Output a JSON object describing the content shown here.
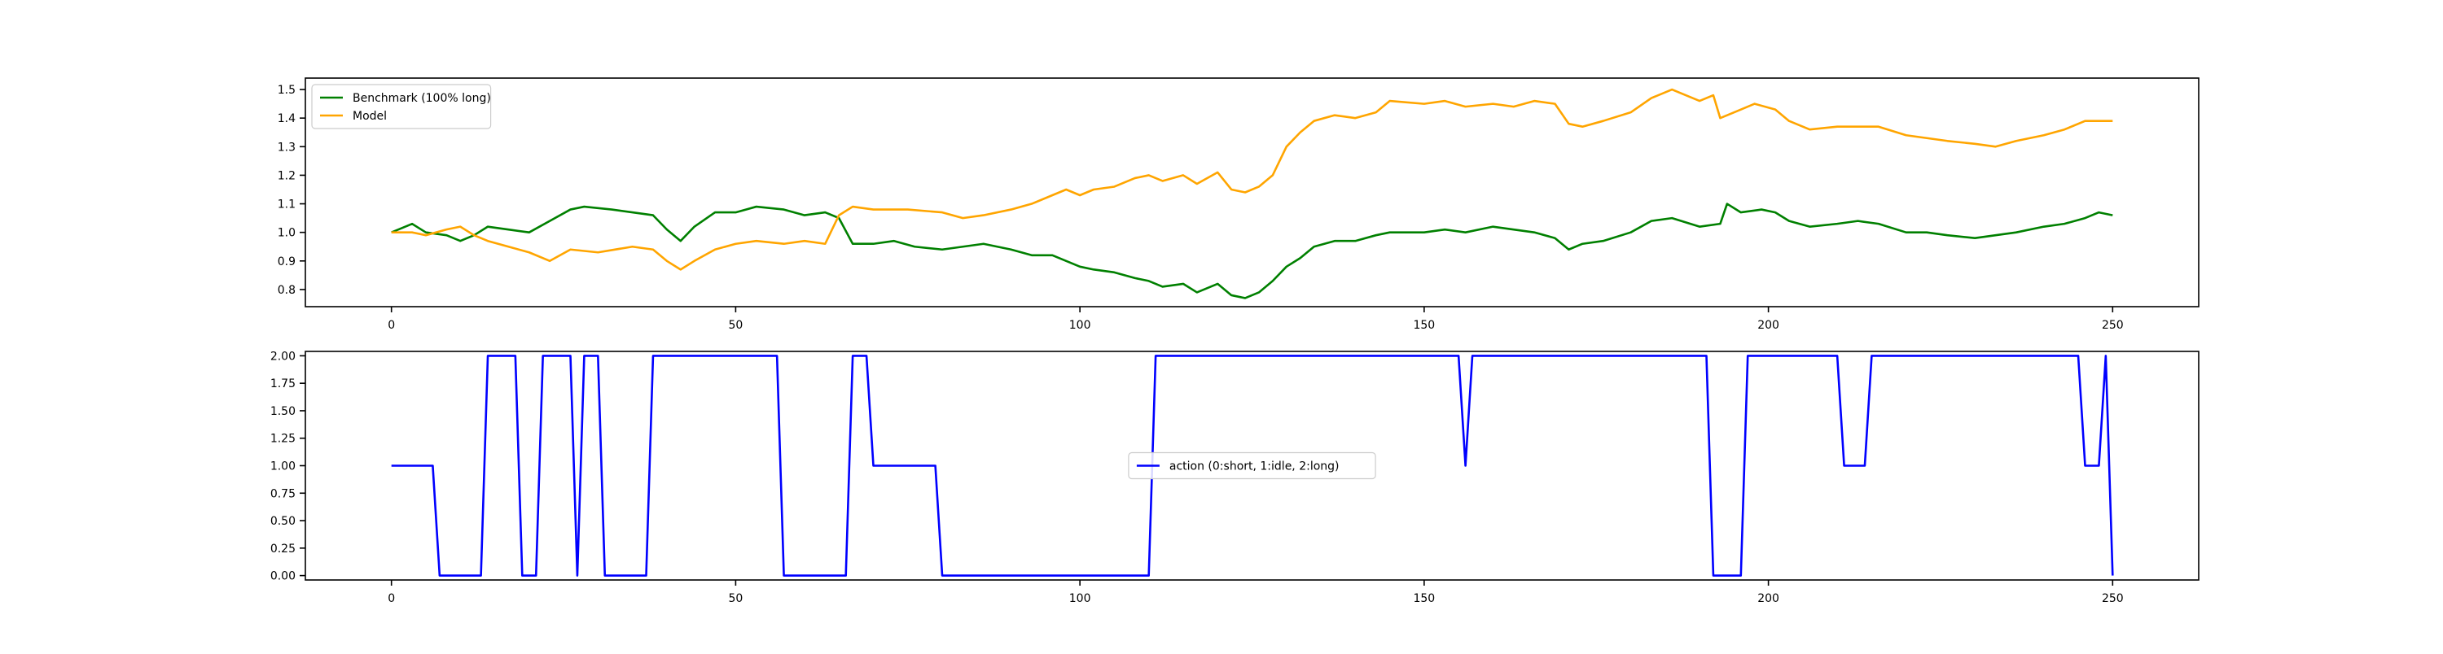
{
  "chart_data": [
    {
      "type": "line",
      "title": "",
      "xlabel": "",
      "ylabel": "",
      "xlim": [
        -12.5,
        262.5
      ],
      "ylim": [
        0.74,
        1.54
      ],
      "xticks": [
        0,
        50,
        100,
        150,
        200,
        250
      ],
      "yticks": [
        0.8,
        0.9,
        1.0,
        1.1,
        1.2,
        1.3,
        1.4,
        1.5
      ],
      "ytick_labels": [
        "0.8",
        "0.9",
        "1.0",
        "1.1",
        "1.2",
        "1.3",
        "1.4",
        "1.5"
      ],
      "grid": false,
      "legend": "top-left",
      "series": [
        {
          "name": "Benchmark (100% long)",
          "color": "#008000",
          "x": [
            0,
            3,
            5,
            8,
            10,
            12,
            14,
            17,
            20,
            23,
            26,
            28,
            32,
            35,
            38,
            40,
            42,
            44,
            47,
            50,
            53,
            57,
            60,
            63,
            65,
            67,
            70,
            73,
            76,
            80,
            83,
            86,
            90,
            93,
            96,
            98,
            100,
            102,
            105,
            108,
            110,
            112,
            115,
            117,
            120,
            122,
            124,
            126,
            128,
            130,
            132,
            134,
            137,
            140,
            143,
            145,
            150,
            153,
            156,
            160,
            163,
            166,
            169,
            171,
            173,
            176,
            180,
            183,
            186,
            190,
            193,
            194,
            196,
            199,
            201,
            203,
            206,
            210,
            213,
            216,
            220,
            223,
            226,
            230,
            233,
            236,
            240,
            243,
            246,
            248,
            250
          ],
          "values": [
            1.0,
            1.03,
            1.0,
            0.99,
            0.97,
            0.99,
            1.02,
            1.01,
            1.0,
            1.04,
            1.08,
            1.09,
            1.08,
            1.07,
            1.06,
            1.01,
            0.97,
            1.02,
            1.07,
            1.07,
            1.09,
            1.08,
            1.06,
            1.07,
            1.05,
            0.96,
            0.96,
            0.97,
            0.95,
            0.94,
            0.95,
            0.96,
            0.94,
            0.92,
            0.92,
            0.9,
            0.88,
            0.87,
            0.86,
            0.84,
            0.83,
            0.81,
            0.82,
            0.79,
            0.82,
            0.78,
            0.77,
            0.79,
            0.83,
            0.88,
            0.91,
            0.95,
            0.97,
            0.97,
            0.99,
            1.0,
            1.0,
            1.01,
            1.0,
            1.02,
            1.01,
            1.0,
            0.98,
            0.94,
            0.96,
            0.97,
            1.0,
            1.04,
            1.05,
            1.02,
            1.03,
            1.1,
            1.07,
            1.08,
            1.07,
            1.04,
            1.02,
            1.03,
            1.04,
            1.03,
            1.0,
            1.0,
            0.99,
            0.98,
            0.99,
            1.0,
            1.02,
            1.03,
            1.05,
            1.07,
            1.06
          ]
        },
        {
          "name": "Model",
          "color": "#FFA500",
          "x": [
            0,
            3,
            5,
            8,
            10,
            12,
            14,
            17,
            20,
            23,
            26,
            30,
            35,
            38,
            40,
            42,
            44,
            47,
            50,
            53,
            57,
            60,
            63,
            65,
            67,
            70,
            75,
            80,
            83,
            86,
            90,
            93,
            96,
            98,
            100,
            102,
            105,
            108,
            110,
            112,
            115,
            117,
            120,
            122,
            124,
            126,
            128,
            130,
            132,
            134,
            137,
            140,
            143,
            145,
            150,
            153,
            156,
            160,
            163,
            166,
            169,
            171,
            173,
            176,
            180,
            183,
            186,
            188,
            190,
            192,
            193,
            195,
            198,
            201,
            203,
            206,
            210,
            213,
            216,
            220,
            223,
            226,
            230,
            233,
            236,
            240,
            243,
            246,
            248,
            250
          ],
          "values": [
            1.0,
            1.0,
            0.99,
            1.01,
            1.02,
            0.99,
            0.97,
            0.95,
            0.93,
            0.9,
            0.94,
            0.93,
            0.95,
            0.94,
            0.9,
            0.87,
            0.9,
            0.94,
            0.96,
            0.97,
            0.96,
            0.97,
            0.96,
            1.06,
            1.09,
            1.08,
            1.08,
            1.07,
            1.05,
            1.06,
            1.08,
            1.1,
            1.13,
            1.15,
            1.13,
            1.15,
            1.16,
            1.19,
            1.2,
            1.18,
            1.2,
            1.17,
            1.21,
            1.15,
            1.14,
            1.16,
            1.2,
            1.3,
            1.35,
            1.39,
            1.41,
            1.4,
            1.42,
            1.46,
            1.45,
            1.46,
            1.44,
            1.45,
            1.44,
            1.46,
            1.45,
            1.38,
            1.37,
            1.39,
            1.42,
            1.47,
            1.5,
            1.48,
            1.46,
            1.48,
            1.4,
            1.42,
            1.45,
            1.43,
            1.39,
            1.36,
            1.37,
            1.37,
            1.37,
            1.34,
            1.33,
            1.32,
            1.31,
            1.3,
            1.32,
            1.34,
            1.36,
            1.39,
            1.39,
            1.39
          ]
        }
      ]
    },
    {
      "type": "line",
      "title": "",
      "xlabel": "",
      "ylabel": "",
      "xlim": [
        -12.5,
        262.5
      ],
      "ylim": [
        -0.04,
        2.04
      ],
      "xticks": [
        0,
        50,
        100,
        150,
        200,
        250
      ],
      "yticks": [
        0.0,
        0.25,
        0.5,
        0.75,
        1.0,
        1.25,
        1.5,
        1.75,
        2.0
      ],
      "ytick_labels": [
        "0.00",
        "0.25",
        "0.50",
        "0.75",
        "1.00",
        "1.25",
        "1.50",
        "1.75",
        "2.00"
      ],
      "grid": false,
      "legend": "center",
      "series": [
        {
          "name": "action (0:short, 1:idle, 2:long)",
          "color": "#0000FF",
          "x": [
            0,
            6,
            7,
            13,
            14,
            18,
            19,
            21,
            22,
            26,
            27,
            28,
            30,
            31,
            37,
            38,
            56,
            57,
            66,
            67,
            69,
            70,
            79,
            80,
            110,
            111,
            155,
            156,
            157,
            191,
            192,
            196,
            197,
            210,
            211,
            214,
            215,
            245,
            246,
            248,
            249,
            250
          ],
          "values": [
            1,
            1,
            0,
            0,
            2,
            2,
            0,
            0,
            2,
            2,
            0,
            2,
            2,
            0,
            0,
            2,
            2,
            0,
            0,
            2,
            2,
            1,
            1,
            0,
            0,
            2,
            2,
            1,
            2,
            2,
            0,
            0,
            2,
            2,
            1,
            1,
            2,
            2,
            1,
            1,
            2,
            0
          ]
        }
      ]
    }
  ]
}
